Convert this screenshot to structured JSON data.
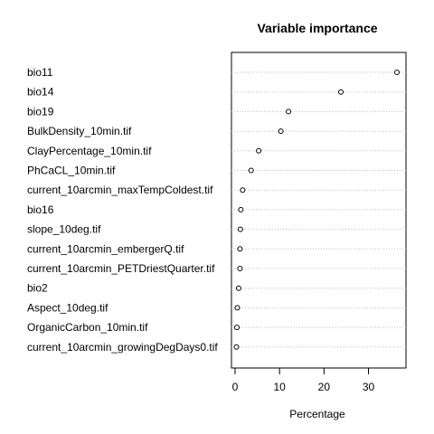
{
  "chart_data": {
    "type": "dotchart",
    "title": "Variable importance",
    "xlabel": "Percentage",
    "ylabel": "",
    "xlim": [
      0,
      37
    ],
    "xticks": [
      0,
      10,
      20,
      30
    ],
    "grid": "dotted horizontal lines",
    "categories": [
      "bio11",
      "bio14",
      "bio19",
      "BulkDensity_10min.tif",
      "ClayPercentage_10min.tif",
      "PhCaCL_10min.tif",
      "current_10arcmin_maxTempColdest.tif",
      "bio16",
      "slope_10deg.tif",
      "current_10arcmin_embergerQ.tif",
      "current_10arcmin_PETDriestQuarter.tif",
      "bio2",
      "Aspect_10deg.tif",
      "OrganicCarbon_10min.tif",
      "current_10arcmin_growingDegDays0.tif"
    ],
    "values": [
      36.4,
      23.8,
      12.0,
      10.3,
      5.3,
      3.6,
      1.7,
      1.3,
      1.2,
      1.1,
      1.1,
      0.8,
      0.5,
      0.4,
      0.3
    ]
  }
}
